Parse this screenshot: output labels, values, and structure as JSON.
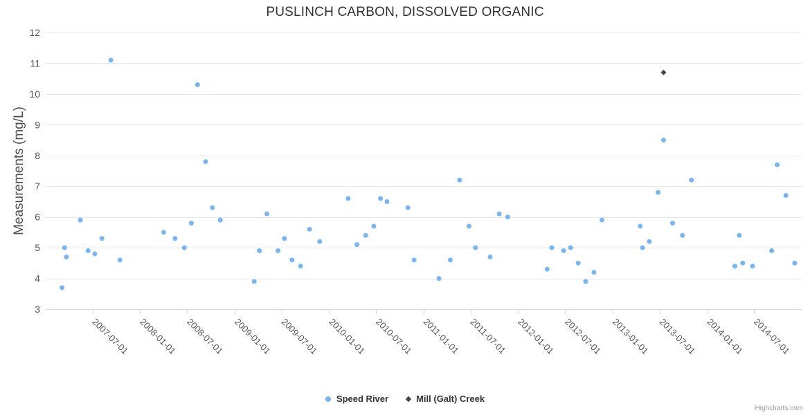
{
  "chart_data": {
    "type": "scatter",
    "title": "PUSLINCH CARBON, DISSOLVED ORGANIC",
    "xlabel": "",
    "ylabel": "Measurements (mg/L)",
    "ylim": [
      3,
      12
    ],
    "yticks": [
      3,
      4,
      5,
      6,
      7,
      8,
      9,
      10,
      11,
      12
    ],
    "xlim": [
      "2007-01-01",
      "2015-01-01"
    ],
    "xticks": [
      "2007-07-01",
      "2008-01-01",
      "2008-07-01",
      "2009-01-01",
      "2009-07-01",
      "2010-01-01",
      "2010-07-01",
      "2011-01-01",
      "2011-07-01",
      "2012-01-01",
      "2012-07-01",
      "2013-01-01",
      "2013-07-01",
      "2014-01-01",
      "2014-07-01"
    ],
    "grid": true,
    "legend_position": "bottom",
    "colors": {
      "speed_river": "#7cb5ec",
      "mill_galt_creek": "#434348",
      "gridline": "#e6e6e6",
      "axis_line": "#ccd6eb"
    },
    "series": [
      {
        "name": "Speed River",
        "color": "#7cb5ec",
        "marker": "circle",
        "points": [
          [
            "2007-03-05",
            3.7
          ],
          [
            "2007-03-15",
            5.0
          ],
          [
            "2007-03-22",
            4.7
          ],
          [
            "2007-05-15",
            5.9
          ],
          [
            "2007-06-14",
            4.9
          ],
          [
            "2007-07-10",
            4.8
          ],
          [
            "2007-08-06",
            5.3
          ],
          [
            "2007-09-10",
            11.1
          ],
          [
            "2007-10-15",
            4.6
          ],
          [
            "2008-04-01",
            5.5
          ],
          [
            "2008-05-15",
            5.3
          ],
          [
            "2008-06-20",
            5.0
          ],
          [
            "2008-07-17",
            5.8
          ],
          [
            "2008-08-10",
            10.3
          ],
          [
            "2008-09-10",
            7.8
          ],
          [
            "2008-10-06",
            6.3
          ],
          [
            "2008-11-06",
            5.9
          ],
          [
            "2009-03-17",
            3.9
          ],
          [
            "2009-04-06",
            4.9
          ],
          [
            "2009-05-05",
            6.1
          ],
          [
            "2009-06-17",
            4.9
          ],
          [
            "2009-07-12",
            5.3
          ],
          [
            "2009-08-10",
            4.6
          ],
          [
            "2009-09-12",
            4.4
          ],
          [
            "2009-10-17",
            5.6
          ],
          [
            "2009-11-25",
            5.2
          ],
          [
            "2010-03-15",
            6.6
          ],
          [
            "2010-04-18",
            5.1
          ],
          [
            "2010-05-22",
            5.4
          ],
          [
            "2010-06-22",
            5.7
          ],
          [
            "2010-07-18",
            6.6
          ],
          [
            "2010-08-12",
            6.5
          ],
          [
            "2010-11-01",
            6.3
          ],
          [
            "2010-11-25",
            4.6
          ],
          [
            "2011-03-01",
            4.0
          ],
          [
            "2011-04-14",
            4.6
          ],
          [
            "2011-05-20",
            7.2
          ],
          [
            "2011-06-25",
            5.7
          ],
          [
            "2011-07-20",
            5.0
          ],
          [
            "2011-09-15",
            4.7
          ],
          [
            "2011-10-20",
            6.1
          ],
          [
            "2011-11-22",
            6.0
          ],
          [
            "2012-04-22",
            4.3
          ],
          [
            "2012-05-10",
            5.0
          ],
          [
            "2012-06-25",
            4.9
          ],
          [
            "2012-07-22",
            5.0
          ],
          [
            "2012-08-20",
            4.5
          ],
          [
            "2012-09-18",
            3.9
          ],
          [
            "2012-10-20",
            4.2
          ],
          [
            "2012-11-20",
            5.9
          ],
          [
            "2013-04-17",
            5.7
          ],
          [
            "2013-04-26",
            5.0
          ],
          [
            "2013-05-22",
            5.2
          ],
          [
            "2013-06-25",
            6.8
          ],
          [
            "2013-07-16",
            8.5
          ],
          [
            "2013-08-20",
            5.8
          ],
          [
            "2013-09-27",
            5.4
          ],
          [
            "2013-11-01",
            7.2
          ],
          [
            "2014-04-18",
            4.4
          ],
          [
            "2014-05-05",
            5.4
          ],
          [
            "2014-05-18",
            4.5
          ],
          [
            "2014-06-25",
            4.4
          ],
          [
            "2014-09-07",
            4.9
          ],
          [
            "2014-09-28",
            7.7
          ],
          [
            "2014-11-01",
            6.7
          ],
          [
            "2014-12-05",
            4.5
          ]
        ]
      },
      {
        "name": "Mill (Galt) Creek",
        "color": "#434348",
        "marker": "diamond",
        "points": [
          [
            "2013-07-16",
            10.7
          ]
        ]
      }
    ],
    "credits": "Highcharts.com"
  }
}
